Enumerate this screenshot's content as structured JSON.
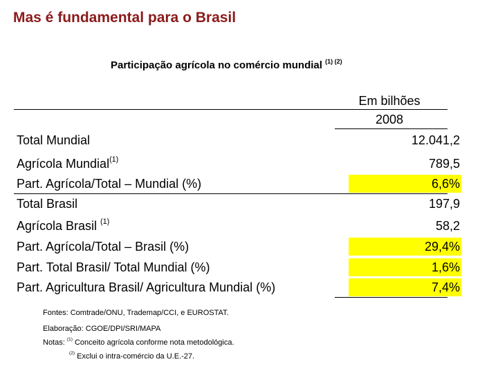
{
  "page_title": "Mas é fundamental para o Brasil",
  "subtitle": "Participação agrícola no comércio mundial",
  "subtitle_sup": "(1) (2)",
  "table": {
    "unit_header": "Em bilhões",
    "year_header": "2008",
    "highlight_color": "#ffff00",
    "rows": [
      {
        "label": "Total Mundial",
        "sup": "",
        "value": "12.041,2",
        "highlight": false
      },
      {
        "label": "Agrícola Mundial",
        "sup": "(1)",
        "value": "789,5",
        "highlight": false
      },
      {
        "label": "Part. Agrícola/Total – Mundial  (%)",
        "sup": "",
        "value": "6,6%",
        "highlight": true
      },
      {
        "label": "Total Brasil",
        "sup": "",
        "value": "197,9",
        "highlight": false
      },
      {
        "label": "Agrícola Brasil ",
        "sup": "(1)",
        "value": "58,2",
        "highlight": false
      },
      {
        "label": "Part. Agrícola/Total – Brasil (%)",
        "sup": "",
        "value": "29,4%",
        "highlight": true
      },
      {
        "label": "Part. Total Brasil/ Total Mundial (%)",
        "sup": "",
        "value": "1,6%",
        "highlight": true
      },
      {
        "label": "Part. Agricultura Brasil/ Agricultura Mundial (%)",
        "sup": "",
        "value": "7,4%",
        "highlight": true
      }
    ]
  },
  "notes": {
    "sources": "Fontes: Comtrade/ONU, Trademap/CCI,  e EUROSTAT.",
    "prepared_by": "Elaboração: CGOE/DPI/SRI/MAPA",
    "notes_label": "Notas:",
    "note1_sup": "(1)",
    "note1": "Conceito agrícola conforme nota metodológica.",
    "note2_sup": "(2)",
    "note2": "Exclui o intra-comércio da U.E.-27."
  },
  "colors": {
    "title": "#8b1a1a"
  }
}
